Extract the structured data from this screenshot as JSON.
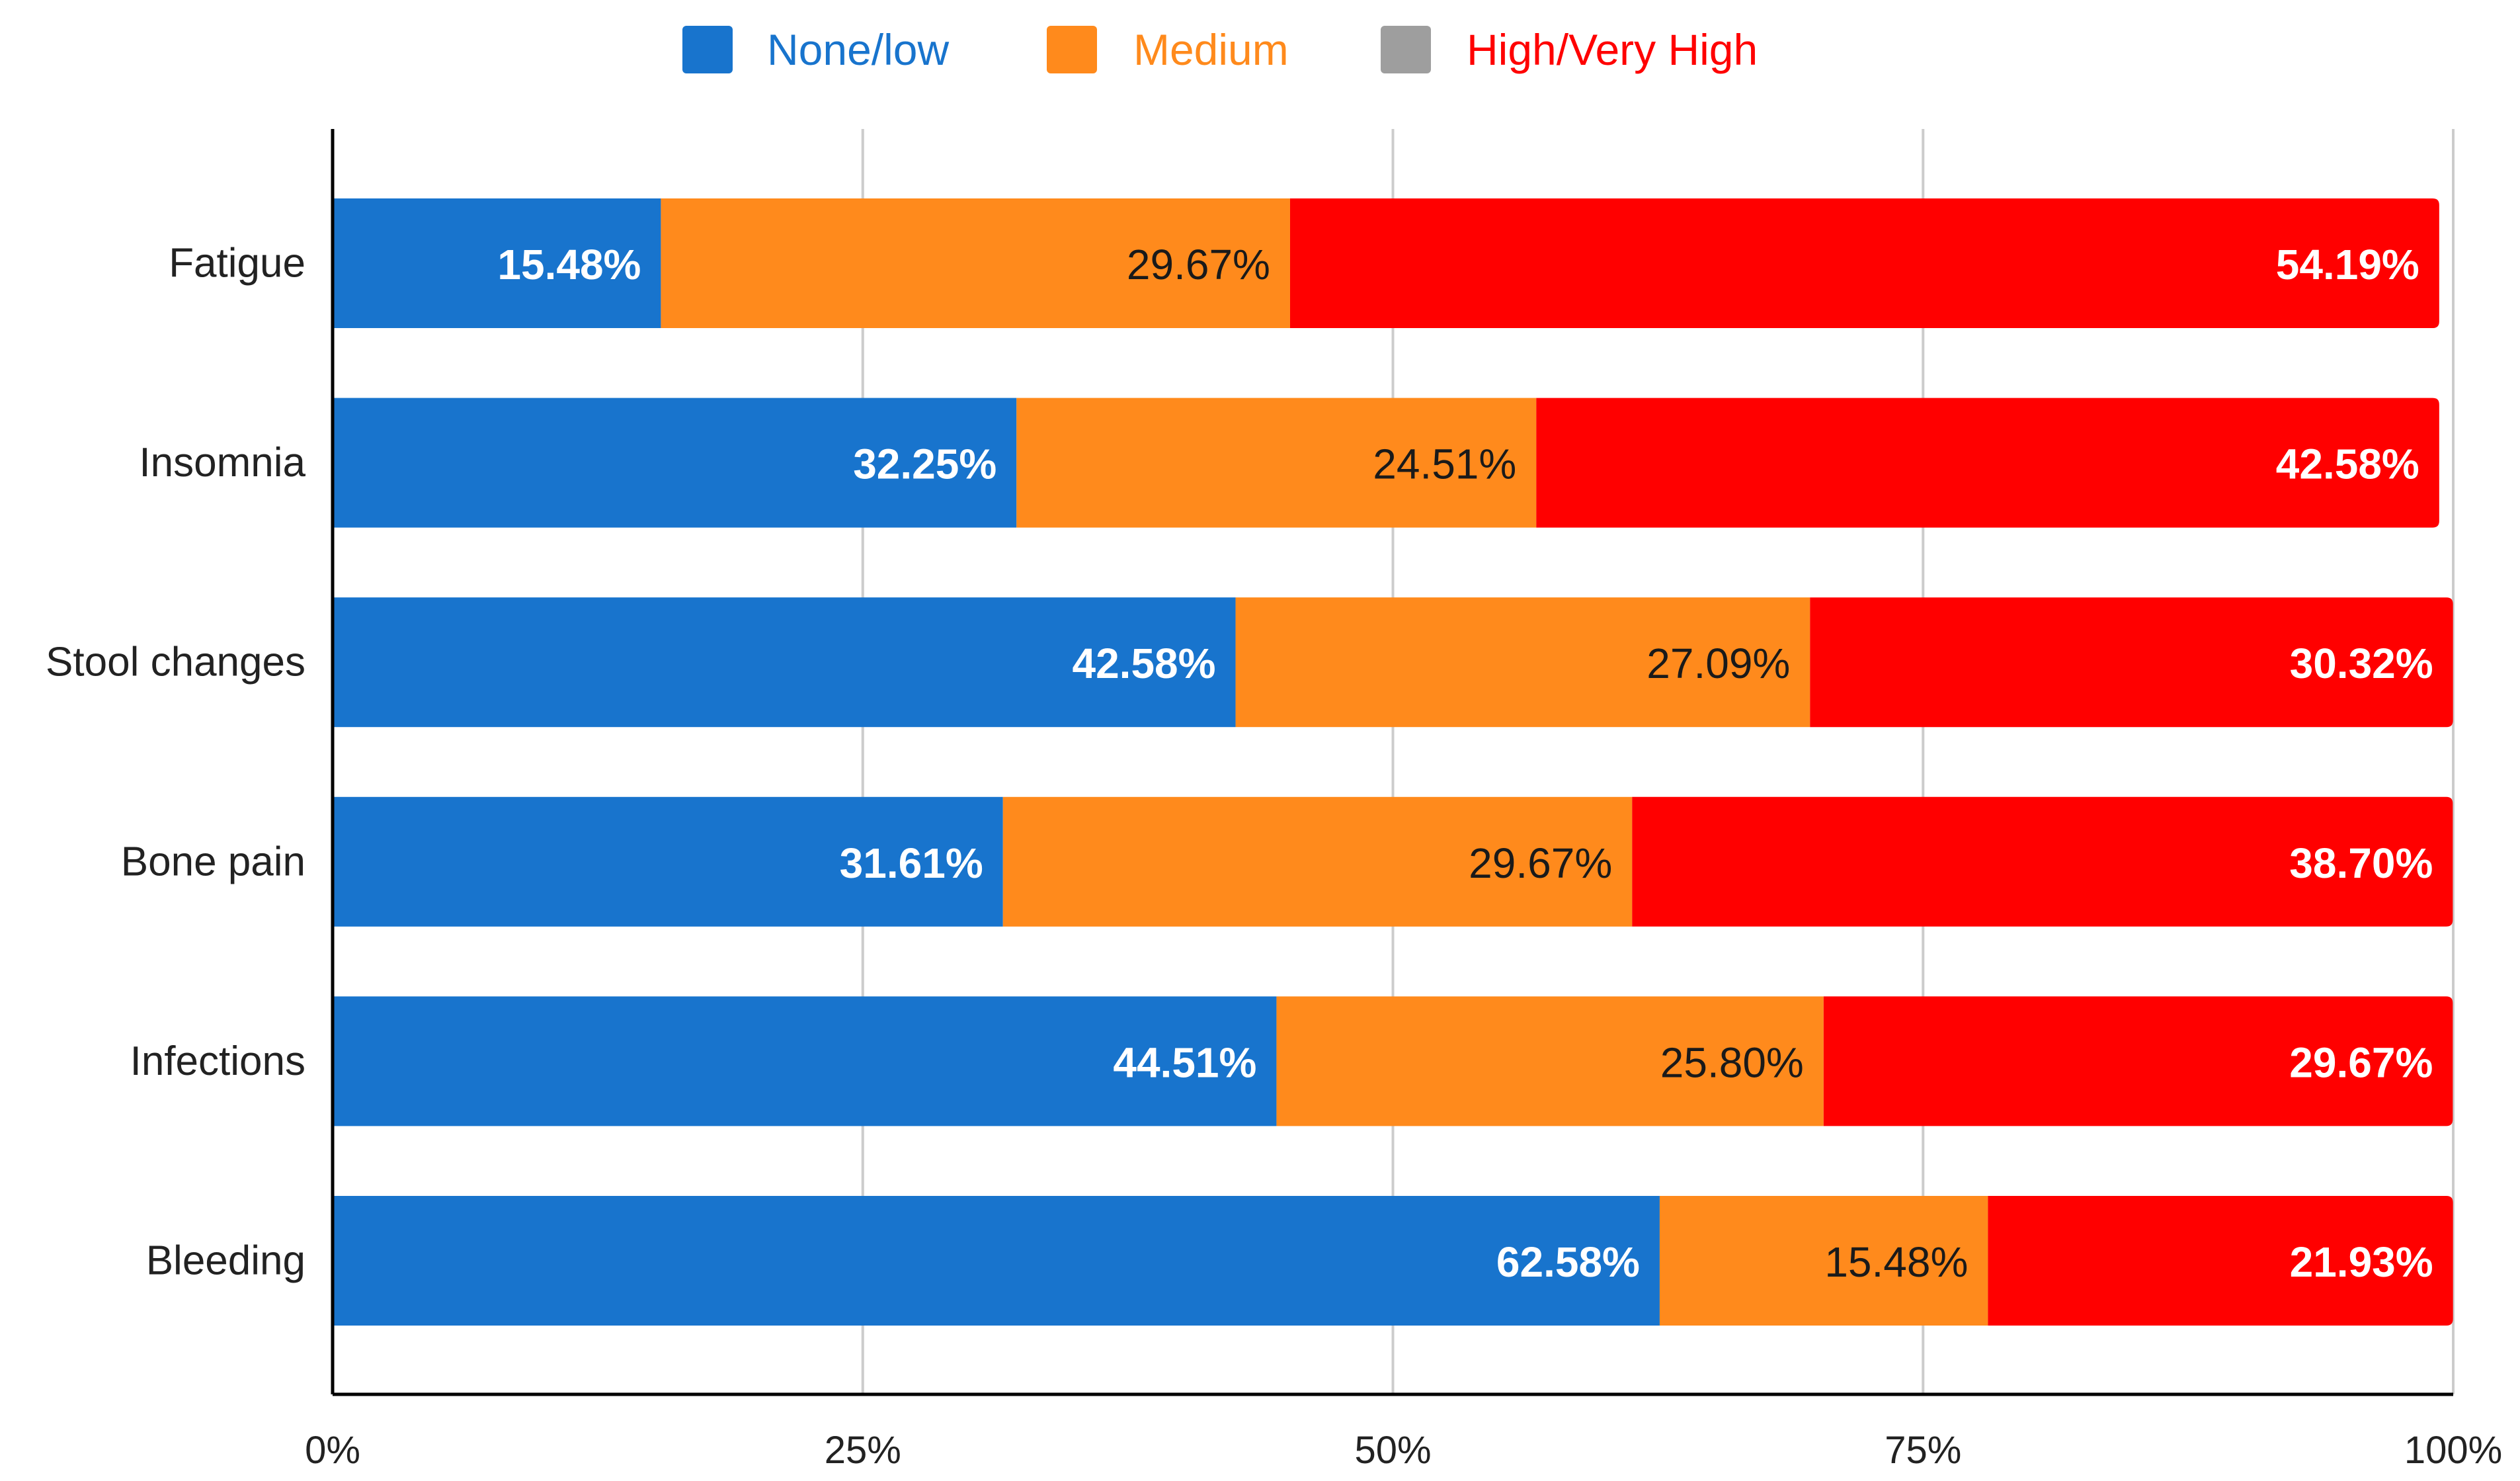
{
  "chart_data": {
    "type": "bar",
    "orientation": "horizontal",
    "stacked": true,
    "title": "",
    "xlabel": "",
    "ylabel": "",
    "xlim": [
      0,
      100
    ],
    "x_ticks": [
      0,
      25,
      50,
      75,
      100
    ],
    "x_tick_labels": [
      "0%",
      "25%",
      "50%",
      "75%",
      "100%"
    ],
    "grid": "vertical",
    "legend_position": "top",
    "categories": [
      "Fatigue",
      "Insomnia",
      "Stool changes",
      "Bone pain",
      "Infections",
      "Bleeding"
    ],
    "series": [
      {
        "name": "None/low",
        "color": "#1874CD",
        "legend_color": "#1874CD",
        "label_color": "#FFFFFF",
        "values": [
          15.48,
          32.25,
          42.58,
          31.61,
          44.51,
          62.58
        ],
        "labels": [
          "15.48%",
          "32.25%",
          "42.58%",
          "31.61%",
          "44.51%",
          "62.58%"
        ]
      },
      {
        "name": "Medium",
        "color": "#FF8A1C",
        "legend_color": "#FF8A1C",
        "label_color": "#1A1A1A",
        "values": [
          29.67,
          24.51,
          27.09,
          29.67,
          25.8,
          15.48
        ],
        "labels": [
          "29.67%",
          "24.51%",
          "27.09%",
          "29.67%",
          "25.80%",
          "15.48%"
        ]
      },
      {
        "name": "High/Very High",
        "color": "#FF0000",
        "legend_color": "#9E9E9E",
        "legend_text_color": "#FF0000",
        "label_color": "#FFFFFF",
        "values": [
          54.19,
          42.58,
          30.32,
          38.7,
          29.67,
          21.93
        ],
        "labels": [
          "54.19%",
          "42.58%",
          "30.32%",
          "38.70%",
          "29.67%",
          "21.93%"
        ]
      }
    ]
  }
}
